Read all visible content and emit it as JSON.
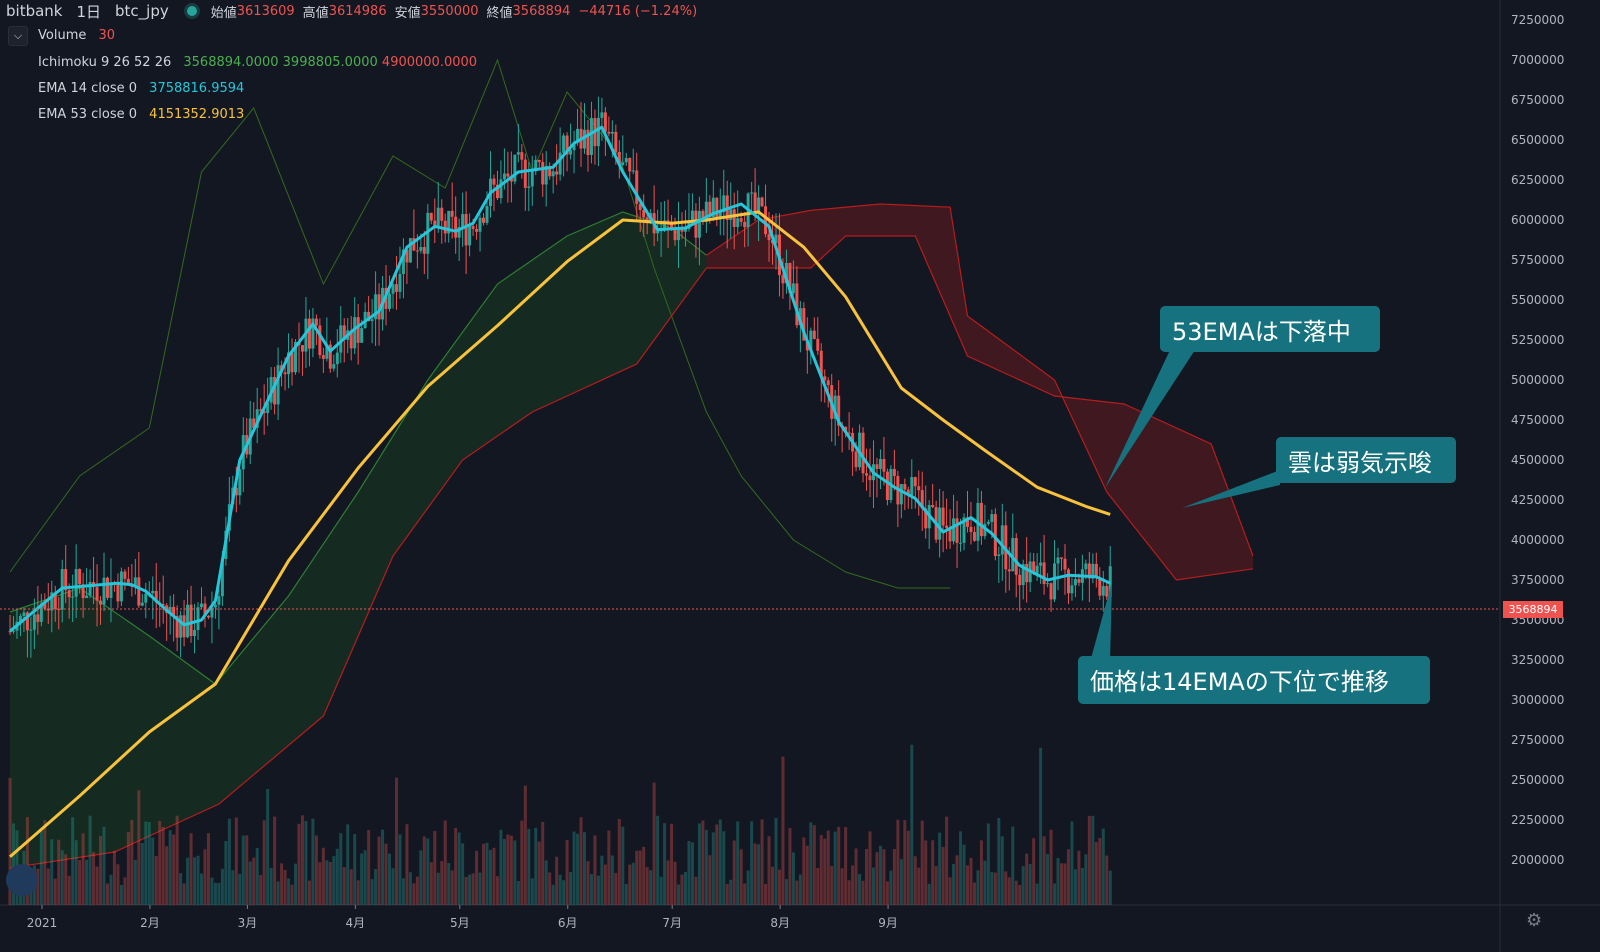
{
  "header": {
    "exchange": "bitbank",
    "interval": "1日",
    "symbol": "btc_jpy",
    "open_label": "始値",
    "open": "3613609",
    "high_label": "高値",
    "high": "3614986",
    "low_label": "安値",
    "low": "3550000",
    "close_label": "終値",
    "close": "3568894",
    "change": "−44716 (−1.24%)"
  },
  "legend": {
    "volume": {
      "name": "Volume",
      "value": "30"
    },
    "ichimoku": {
      "name": "Ichimoku 9 26 52 26",
      "v1": "3568894.0000",
      "v2": "3998805.0000",
      "v3": "4900000.0000"
    },
    "ema14": {
      "name": "EMA 14 close 0",
      "value": "3758816.9594"
    },
    "ema53": {
      "name": "EMA 53 close 0",
      "value": "4151352.9013"
    }
  },
  "callouts": {
    "ema53": "53EMAは下落中",
    "cloud": "雲は弱気示唆",
    "price": "価格は14EMAの下位で推移"
  },
  "last_price_tag": "3568894",
  "colors": {
    "background": "#131722",
    "up": "#26a69a",
    "down": "#ef5350",
    "ema14": "#26c6da",
    "ema53": "#f9c23c",
    "cloud_bull": "#1b5e20",
    "cloud_bear": "#b71c1c",
    "callout": "#17727f"
  },
  "chart_data": {
    "type": "candlestick",
    "y_axis_ticks": [
      "7250000",
      "7000000",
      "6750000",
      "6500000",
      "6250000",
      "6000000",
      "5750000",
      "5500000",
      "5250000",
      "5000000",
      "4750000",
      "4500000",
      "4250000",
      "4000000",
      "3750000",
      "3500000",
      "3250000",
      "3000000",
      "2750000",
      "2500000",
      "2250000",
      "2000000"
    ],
    "x_axis_ticks": [
      "2021",
      "2月",
      "3月",
      "4月",
      "5月",
      "6月",
      "7月",
      "8月",
      "9月"
    ],
    "last_price": 3568894,
    "ema14_path": [
      [
        0,
        3430000
      ],
      [
        15,
        3700000
      ],
      [
        31,
        3730000
      ],
      [
        35,
        3720000
      ],
      [
        39,
        3680000
      ],
      [
        45,
        3560000
      ],
      [
        50,
        3470000
      ],
      [
        55,
        3500000
      ],
      [
        59,
        3620000
      ],
      [
        66,
        4500000
      ],
      [
        80,
        5150000
      ],
      [
        87,
        5350000
      ],
      [
        92,
        5180000
      ],
      [
        99,
        5320000
      ],
      [
        106,
        5430000
      ],
      [
        114,
        5830000
      ],
      [
        122,
        5960000
      ],
      [
        128,
        5930000
      ],
      [
        133,
        5980000
      ],
      [
        138,
        6170000
      ],
      [
        146,
        6300000
      ],
      [
        156,
        6330000
      ],
      [
        162,
        6480000
      ],
      [
        170,
        6580000
      ],
      [
        176,
        6300000
      ],
      [
        186,
        5940000
      ],
      [
        194,
        5950000
      ],
      [
        202,
        6040000
      ],
      [
        210,
        6100000
      ],
      [
        218,
        5960000
      ],
      [
        228,
        5300000
      ],
      [
        238,
        4740000
      ],
      [
        248,
        4420000
      ],
      [
        254,
        4330000
      ],
      [
        260,
        4260000
      ],
      [
        268,
        4050000
      ],
      [
        276,
        4140000
      ],
      [
        282,
        4040000
      ],
      [
        290,
        3840000
      ],
      [
        298,
        3750000
      ],
      [
        304,
        3780000
      ],
      [
        312,
        3770000
      ],
      [
        316,
        3730000
      ]
    ],
    "ema53_path": [
      [
        0,
        2020000
      ],
      [
        20,
        2400000
      ],
      [
        40,
        2800000
      ],
      [
        59,
        3100000
      ],
      [
        80,
        3870000
      ],
      [
        100,
        4450000
      ],
      [
        120,
        4960000
      ],
      [
        140,
        5340000
      ],
      [
        160,
        5740000
      ],
      [
        176,
        6000000
      ],
      [
        190,
        5980000
      ],
      [
        200,
        6000000
      ],
      [
        215,
        6050000
      ],
      [
        228,
        5830000
      ],
      [
        240,
        5520000
      ],
      [
        256,
        4950000
      ],
      [
        268,
        4750000
      ],
      [
        280,
        4560000
      ],
      [
        295,
        4330000
      ],
      [
        309,
        4210000
      ],
      [
        316,
        4160000
      ]
    ],
    "cloud_segments": [
      {
        "kind": "bull",
        "span_a": [
          [
            0,
            3550000
          ],
          [
            20,
            3700000
          ],
          [
            40,
            3400000
          ],
          [
            59,
            3100000
          ],
          [
            80,
            3650000
          ],
          [
            100,
            4300000
          ],
          [
            120,
            5000000
          ],
          [
            140,
            5600000
          ],
          [
            160,
            5900000
          ],
          [
            176,
            6050000
          ],
          [
            190,
            5950000
          ],
          [
            200,
            5780000
          ]
        ],
        "span_b": [
          [
            0,
            1950000
          ],
          [
            30,
            2050000
          ],
          [
            60,
            2350000
          ],
          [
            90,
            2900000
          ],
          [
            110,
            3900000
          ],
          [
            130,
            4500000
          ],
          [
            150,
            4800000
          ],
          [
            165,
            4950000
          ],
          [
            180,
            5100000
          ],
          [
            200,
            5700000
          ]
        ]
      },
      {
        "kind": "bear",
        "span_a": [
          [
            200,
            5780000
          ],
          [
            215,
            6000000
          ],
          [
            230,
            6060000
          ],
          [
            250,
            6100000
          ],
          [
            270,
            6080000
          ],
          [
            275,
            5400000
          ],
          [
            300,
            5000000
          ],
          [
            315,
            4300000
          ],
          [
            335,
            3750000
          ],
          [
            357,
            3820000
          ]
        ],
        "span_b": [
          [
            200,
            5700000
          ],
          [
            215,
            5700000
          ],
          [
            230,
            5700000
          ],
          [
            240,
            5900000
          ],
          [
            260,
            5900000
          ],
          [
            275,
            5150000
          ],
          [
            300,
            4900000
          ],
          [
            320,
            4850000
          ],
          [
            345,
            4600000
          ],
          [
            357,
            3900000
          ]
        ]
      }
    ],
    "lagging_span": [
      [
        0,
        3800000
      ],
      [
        20,
        4400000
      ],
      [
        40,
        4700000
      ],
      [
        55,
        6300000
      ],
      [
        70,
        6700000
      ],
      [
        90,
        5600000
      ],
      [
        110,
        6400000
      ],
      [
        125,
        6200000
      ],
      [
        140,
        7000000
      ],
      [
        150,
        6300000
      ],
      [
        160,
        6800000
      ],
      [
        175,
        6400000
      ],
      [
        185,
        5700000
      ],
      [
        200,
        4800000
      ],
      [
        210,
        4400000
      ],
      [
        225,
        4000000
      ],
      [
        240,
        3800000
      ],
      [
        255,
        3700000
      ],
      [
        270,
        3700000
      ]
    ],
    "candles_count": 317,
    "x_range_days": [
      0,
      365
    ]
  }
}
